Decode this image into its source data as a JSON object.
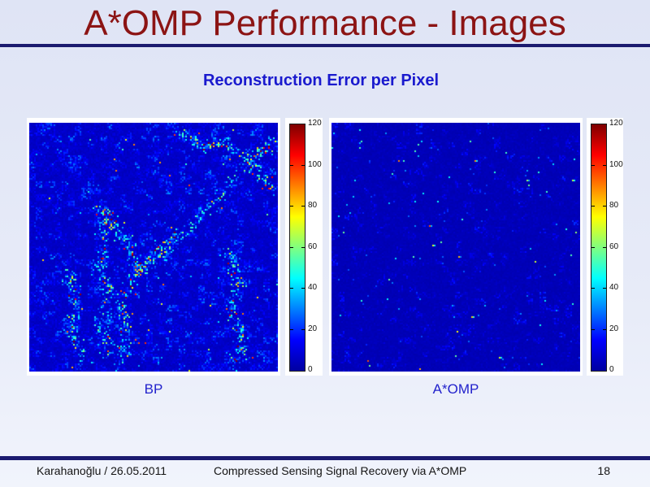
{
  "slide": {
    "title": "A*OMP Performance - Images",
    "subtitle": "Reconstruction Error per Pixel",
    "figure_labels": {
      "left": "BP",
      "right": "A*OMP"
    },
    "footer": {
      "author_date": "Karahanoğlu / 26.05.2011",
      "presentation_title": "Compressed Sensing Signal Recovery via A*OMP",
      "page_number": "18"
    }
  },
  "colorbar": {
    "ticks": [
      "120",
      "100",
      "80",
      "60",
      "40",
      "20",
      "0"
    ],
    "min": 0,
    "max": 120
  },
  "colors": {
    "title_text": "#8c1414",
    "subtitle_text": "#1a1ace",
    "figure_label_text": "#2222cc",
    "divider": "#1b1b70",
    "background_top": "#dfe4f5",
    "background_bottom": "#f1f4fc",
    "panel_background": "#ffffff"
  },
  "chart_data": [
    {
      "type": "heatmap",
      "title": "BP",
      "colormap": "jet",
      "value_range": [
        0,
        120
      ],
      "colorbar_ticks": [
        0,
        20,
        40,
        60,
        80,
        100,
        120
      ],
      "legend_position": "right-colorbar",
      "description": "Per-pixel reconstruction error of BP: predominantly low-error blue field with dense light-blue/cyan speckle and scattered green-yellow high-error dots tracing the image edge structures in 8px blocky texture"
    },
    {
      "type": "heatmap",
      "title": "A*OMP",
      "colormap": "jet",
      "value_range": [
        0,
        120
      ],
      "colorbar_ticks": [
        0,
        20,
        40,
        60,
        80,
        100,
        120
      ],
      "legend_position": "right-colorbar",
      "description": "Per-pixel reconstruction error of A*OMP: near-uniform low-error blue field with sparse isolated 8px blocks of faint speckle and rare cyan/green/yellow dots"
    }
  ]
}
